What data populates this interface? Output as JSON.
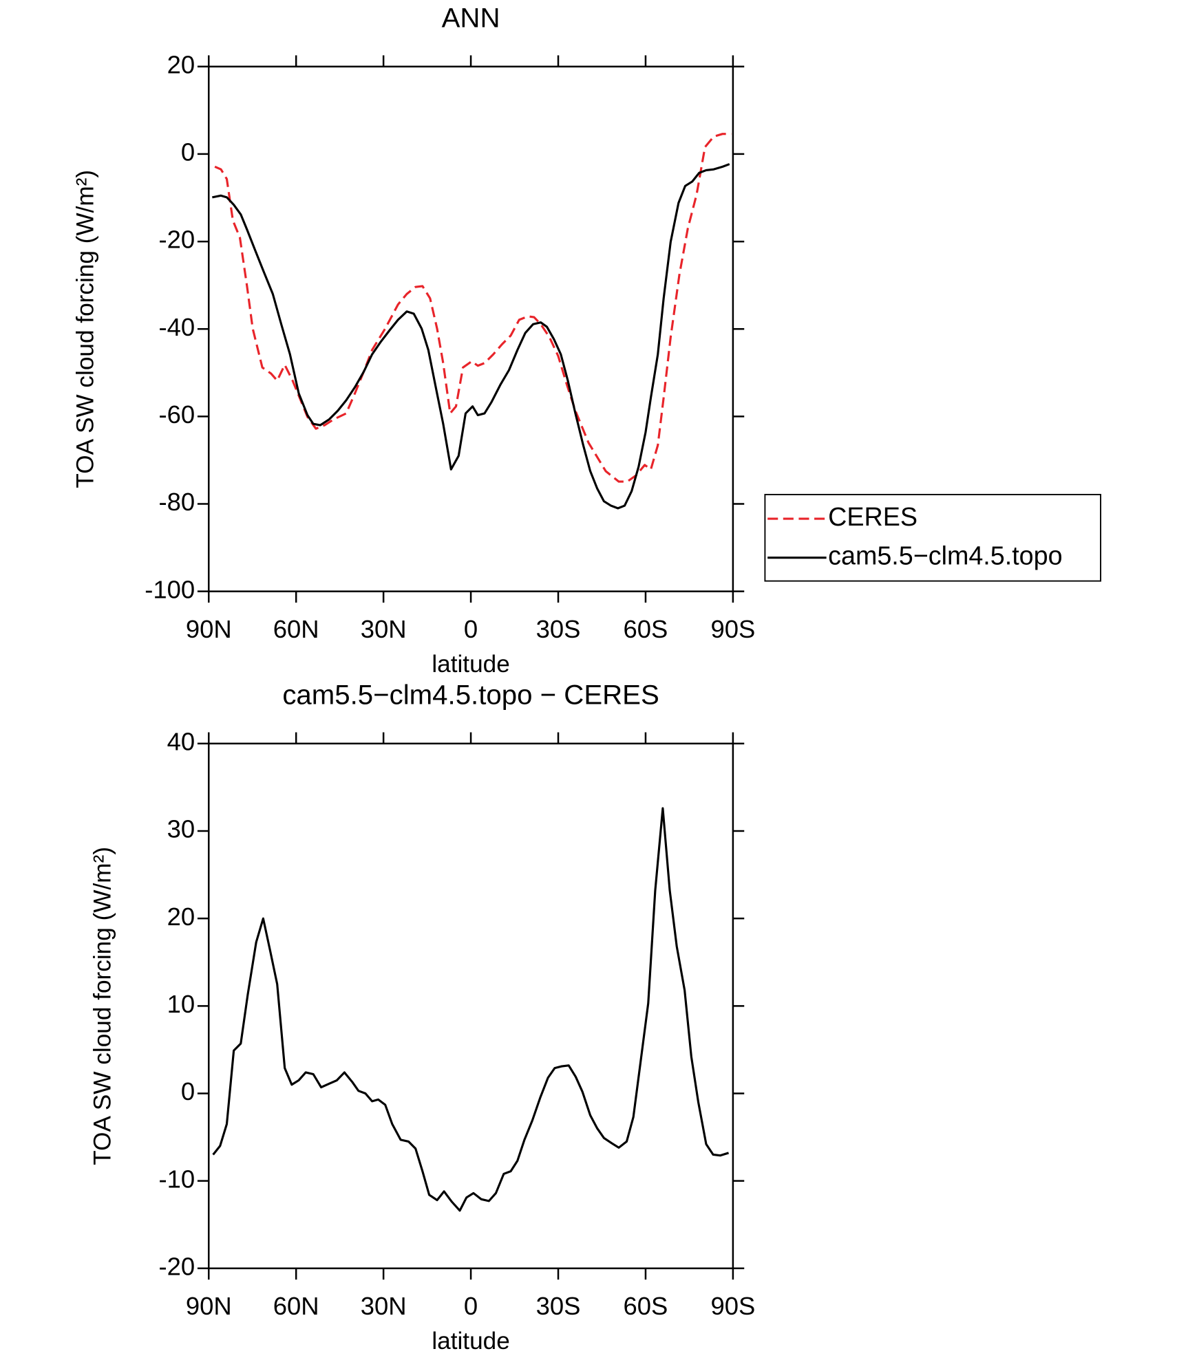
{
  "chart_data": [
    {
      "type": "line",
      "title": "ANN",
      "xlabel": "latitude",
      "ylabel": "TOA SW cloud forcing (W/m²)",
      "xlim": [
        90,
        -90
      ],
      "xticks": [
        {
          "value": 90,
          "label": "90N"
        },
        {
          "value": 60,
          "label": "60N"
        },
        {
          "value": 30,
          "label": "30N"
        },
        0,
        {
          "value": -30,
          "label": "30S"
        },
        {
          "value": -60,
          "label": "60S"
        },
        {
          "value": -90,
          "label": "90S"
        }
      ],
      "ylim": [
        -100,
        20
      ],
      "yticks": [
        -100,
        -80,
        -60,
        -40,
        -20,
        0,
        20
      ],
      "legend": "right",
      "series": [
        {
          "name": "CERES",
          "color": "#e8242a",
          "linestyle": "dashed",
          "x": [
            87.9,
            85.8,
            83.8,
            81.7,
            79.3,
            76.9,
            74.9,
            71.6,
            68.6,
            66.5,
            63.9,
            61.2,
            58.8,
            56.1,
            53.2,
            50.2,
            47.2,
            42.8,
            39.8,
            36.8,
            33.9,
            29.4,
            25.0,
            22.0,
            19.0,
            16.6,
            14.0,
            11.6,
            9.5,
            7.1,
            5.1,
            2.7,
            -0.3,
            -2.4,
            -4.7,
            -7.7,
            -10.7,
            -13.7,
            -16.6,
            -19.6,
            -21.7,
            -24.0,
            -27.0,
            -30.0,
            -33.0,
            -35.9,
            -40.4,
            -46.3,
            -50.8,
            -53.7,
            -56.7,
            -59.7,
            -61.8,
            -64.2,
            -66.2,
            -68.6,
            -71.6,
            -74.5,
            -77.5,
            -80.4,
            -83.4,
            -86.4,
            -89.4
          ],
          "values": [
            -2.9,
            -3.5,
            -5.7,
            -15.2,
            -19.1,
            -30.0,
            -39.9,
            -48.8,
            -50.2,
            -51.8,
            -48.2,
            -51.8,
            -55.7,
            -60.1,
            -62.8,
            -62.0,
            -60.7,
            -59.3,
            -54.7,
            -49.8,
            -44.8,
            -39.9,
            -34.4,
            -32.0,
            -30.4,
            -30.2,
            -33.0,
            -39.9,
            -47.8,
            -59.3,
            -57.7,
            -48.8,
            -47.4,
            -48.4,
            -47.8,
            -45.8,
            -43.5,
            -41.5,
            -37.9,
            -37.1,
            -37.3,
            -38.9,
            -41.9,
            -46.2,
            -52.8,
            -58.7,
            -66.0,
            -72.5,
            -74.9,
            -74.9,
            -73.5,
            -71.1,
            -72.1,
            -66.6,
            -55.7,
            -41.9,
            -27.6,
            -17.0,
            -9.3,
            1.6,
            4.0,
            4.6,
            4.6
          ]
        },
        {
          "name": "cam5.5−clm4.5.topo",
          "color": "#000000",
          "linestyle": "solid",
          "x": [
            88.8,
            85.8,
            83.8,
            81.4,
            79.0,
            76.9,
            74.0,
            71.0,
            68.0,
            65.1,
            62.1,
            59.1,
            56.1,
            54.1,
            51.7,
            48.7,
            45.7,
            42.8,
            39.8,
            36.8,
            33.9,
            30.9,
            27.9,
            25.0,
            22.0,
            19.6,
            16.9,
            14.6,
            12.2,
            9.5,
            6.8,
            4.2,
            1.8,
            -0.6,
            -2.4,
            -4.7,
            -7.1,
            -10.1,
            -13.1,
            -16.0,
            -18.7,
            -21.4,
            -24.0,
            -26.1,
            -28.5,
            -30.9,
            -33.3,
            -35.9,
            -38.6,
            -41.0,
            -43.4,
            -45.7,
            -48.1,
            -50.5,
            -52.8,
            -55.2,
            -57.6,
            -60.0,
            -61.8,
            -64.2,
            -66.2,
            -68.6,
            -71.3,
            -73.6,
            -76.0,
            -78.4,
            -80.8,
            -83.4,
            -86.4,
            -88.8
          ],
          "values": [
            -9.9,
            -9.5,
            -9.9,
            -11.6,
            -13.8,
            -17.2,
            -22.1,
            -27.1,
            -32.0,
            -38.9,
            -45.8,
            -54.7,
            -59.7,
            -61.7,
            -62.0,
            -60.7,
            -58.7,
            -56.3,
            -53.3,
            -49.8,
            -45.8,
            -42.9,
            -40.3,
            -37.9,
            -36.0,
            -36.5,
            -39.9,
            -44.8,
            -52.8,
            -61.7,
            -72.1,
            -69.0,
            -59.3,
            -57.7,
            -59.7,
            -59.3,
            -56.7,
            -52.8,
            -49.4,
            -44.8,
            -40.9,
            -38.9,
            -38.5,
            -39.5,
            -42.3,
            -45.8,
            -51.8,
            -59.3,
            -66.6,
            -72.5,
            -76.5,
            -79.4,
            -80.4,
            -81.0,
            -80.4,
            -77.1,
            -71.5,
            -63.6,
            -55.7,
            -45.8,
            -33.0,
            -20.1,
            -11.2,
            -7.3,
            -6.3,
            -4.3,
            -3.7,
            -3.5,
            -2.9,
            -2.3
          ]
        }
      ]
    },
    {
      "type": "line",
      "title": "cam5.5−clm4.5.topo − CERES",
      "xlabel": "latitude",
      "ylabel": "TOA SW cloud forcing (W/m²)",
      "xlim": [
        90,
        -90
      ],
      "xticks": [
        {
          "value": 90,
          "label": "90N"
        },
        {
          "value": 60,
          "label": "60N"
        },
        {
          "value": 30,
          "label": "30N"
        },
        0,
        {
          "value": -30,
          "label": "30S"
        },
        {
          "value": -60,
          "label": "60S"
        },
        {
          "value": -90,
          "label": "90S"
        }
      ],
      "ylim": [
        -20,
        40
      ],
      "yticks": [
        -20,
        -10,
        0,
        10,
        20,
        30,
        40
      ],
      "series": [
        {
          "color": "#000000",
          "linestyle": "solid",
          "x": [
            88.5,
            86.1,
            83.8,
            81.4,
            79.0,
            76.6,
            73.7,
            71.3,
            68.9,
            66.5,
            63.9,
            61.5,
            59.1,
            56.7,
            54.1,
            51.4,
            48.7,
            46.0,
            43.4,
            40.7,
            38.6,
            36.2,
            33.9,
            31.8,
            29.4,
            27.0,
            24.1,
            21.4,
            19.0,
            16.6,
            14.3,
            11.6,
            9.2,
            6.5,
            3.8,
            1.5,
            -0.9,
            -3.6,
            -6.2,
            -8.6,
            -11.3,
            -13.7,
            -16.0,
            -18.4,
            -21.1,
            -23.8,
            -26.5,
            -28.8,
            -31.2,
            -33.6,
            -36.0,
            -38.3,
            -41.0,
            -43.4,
            -45.7,
            -48.4,
            -50.8,
            -53.5,
            -55.8,
            -58.2,
            -60.9,
            -63.3,
            -65.9,
            -68.3,
            -70.7,
            -73.4,
            -75.7,
            -78.1,
            -80.8,
            -83.2,
            -85.6,
            -88.5
          ],
          "values": [
            -7.0,
            -6.0,
            -3.5,
            4.9,
            5.7,
            11.3,
            17.3,
            20.0,
            16.3,
            12.5,
            2.9,
            1.0,
            1.5,
            2.4,
            2.2,
            0.7,
            1.1,
            1.5,
            2.4,
            1.3,
            0.3,
            0.0,
            -0.9,
            -0.7,
            -1.3,
            -3.5,
            -5.3,
            -5.5,
            -6.3,
            -8.9,
            -11.6,
            -12.2,
            -11.2,
            -12.4,
            -13.4,
            -11.9,
            -11.4,
            -12.1,
            -12.3,
            -11.4,
            -9.2,
            -8.9,
            -7.7,
            -5.3,
            -3.1,
            -0.5,
            1.8,
            2.9,
            3.1,
            3.2,
            1.9,
            0.2,
            -2.5,
            -4.0,
            -5.1,
            -5.7,
            -6.2,
            -5.5,
            -2.7,
            3.4,
            10.3,
            23.2,
            32.6,
            23.2,
            16.8,
            11.8,
            4.2,
            -1.0,
            -5.8,
            -7.0,
            -7.1,
            -6.8
          ]
        }
      ]
    }
  ]
}
